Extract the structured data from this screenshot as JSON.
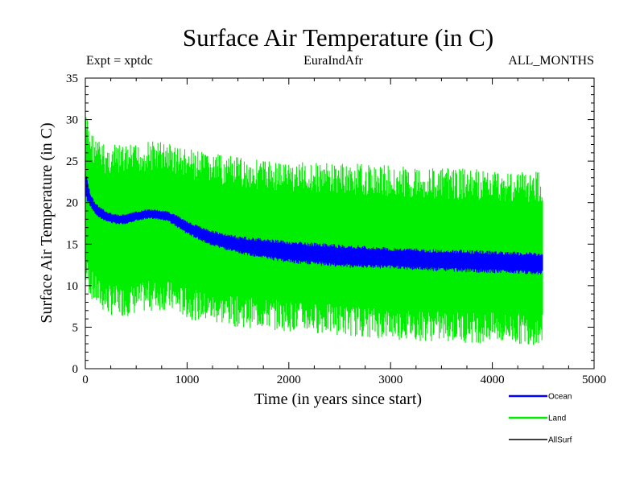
{
  "chart_data": {
    "type": "line",
    "title": "Surface Air Temperature (in C)",
    "subtitle_left": "Expt = xptdc",
    "subtitle_center": "EuraIndAfr",
    "subtitle_right": "ALL_MONTHS",
    "xlabel": "Time (in years since start)",
    "ylabel": "Surface Air Temperature (in C)",
    "xlim": [
      0,
      5000
    ],
    "ylim": [
      0,
      35
    ],
    "xticks": [
      "0",
      "1000",
      "2000",
      "3000",
      "4000",
      "5000"
    ],
    "yticks": [
      "0",
      "5",
      "10",
      "15",
      "20",
      "25",
      "30",
      "35"
    ],
    "legend_position": "bottom-right",
    "series": [
      {
        "name": "Land",
        "color": "#00ee00",
        "x": [
          0,
          50,
          100,
          200,
          300,
          400,
          500,
          600,
          700,
          800,
          900,
          1000,
          1200,
          1500,
          2000,
          2500,
          3000,
          3500,
          4000,
          4500
        ],
        "ymax": [
          31,
          29,
          28,
          27,
          27,
          27,
          27,
          27.5,
          27.5,
          27.5,
          27,
          26.5,
          26,
          25.5,
          25,
          24.8,
          24.5,
          24.2,
          24,
          23.8
        ],
        "ymin": [
          10,
          8.5,
          7.5,
          6.5,
          6.3,
          6.3,
          6.5,
          6.8,
          7,
          7,
          6.5,
          6,
          5.5,
          5,
          4.5,
          4,
          3.5,
          3.2,
          3,
          2.8
        ]
      },
      {
        "name": "Ocean",
        "color": "#0000ff",
        "x": [
          0,
          50,
          100,
          200,
          300,
          400,
          500,
          600,
          700,
          800,
          900,
          1000,
          1200,
          1500,
          2000,
          2500,
          3000,
          3500,
          4000,
          4500
        ],
        "ymax": [
          24,
          21,
          20,
          19,
          18.6,
          18.6,
          19,
          19.2,
          19.2,
          19,
          18.5,
          17.8,
          16.8,
          16,
          15.4,
          15,
          14.6,
          14.4,
          14.2,
          14
        ],
        "ymin": [
          20.5,
          19.5,
          18.5,
          17.7,
          17.4,
          17.4,
          17.8,
          18,
          18,
          17.8,
          17,
          16.2,
          15,
          13.8,
          12.7,
          12.2,
          12,
          11.7,
          11.5,
          11.3
        ]
      },
      {
        "name": "AllSurf",
        "color": "#000000",
        "x": [],
        "y": []
      }
    ]
  }
}
